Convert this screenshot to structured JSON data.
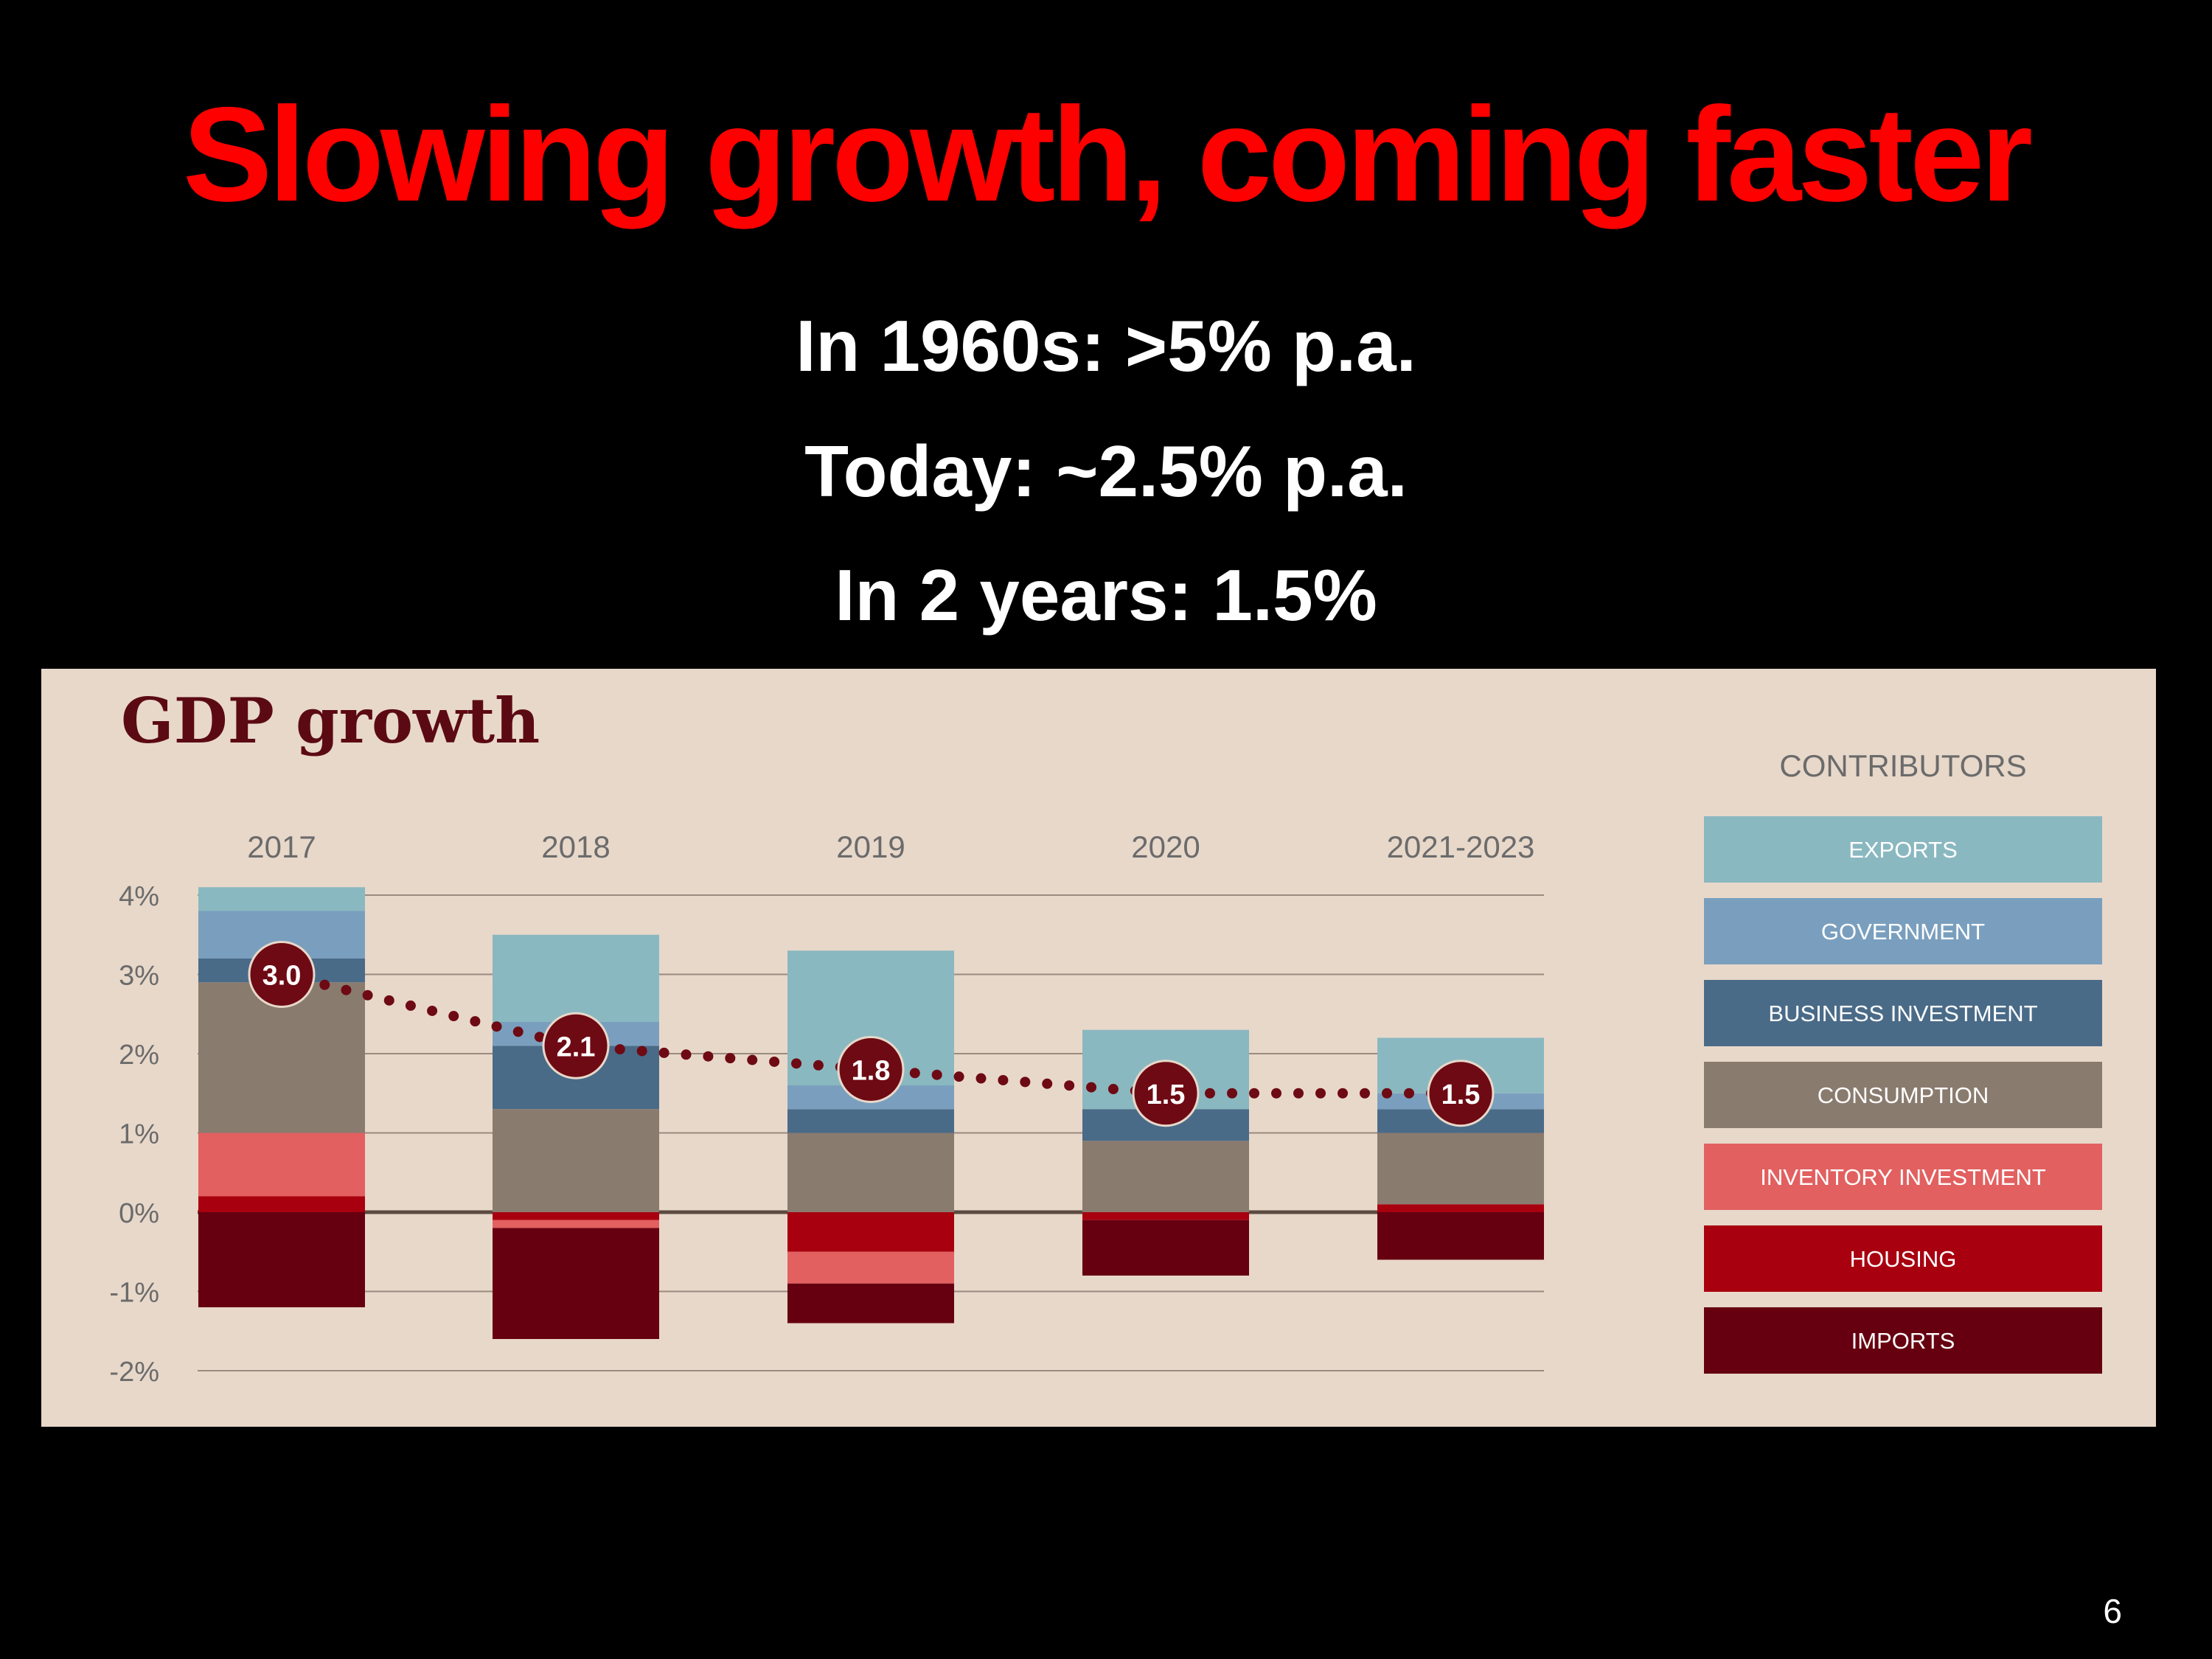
{
  "slide": {
    "title": "Slowing growth, coming faster",
    "bullets": [
      "In 1960s: >5% p.a.",
      "Today: ~2.5% p.a.",
      "In 2 years: 1.5%"
    ],
    "page_number": "6"
  },
  "colors": {
    "background": "#000000",
    "title": "#ff0000",
    "panel": "#e8d8ca",
    "exports": "#8ab8c0",
    "government": "#7a9fbe",
    "business_investment": "#4a6b88",
    "consumption": "#8a7b6f",
    "inventory_investment": "#e26060",
    "housing": "#a8000f",
    "imports": "#660010",
    "marker": "#6e0a14"
  },
  "chart_data": {
    "type": "bar",
    "title": "GDP growth",
    "legend_title": "CONTRIBUTORS",
    "legend_position": "right",
    "stacked": true,
    "grid": true,
    "categories": [
      "2017",
      "2018",
      "2019",
      "2020",
      "2021-2023"
    ],
    "ylim": [
      -2,
      4
    ],
    "yticks": [
      4,
      3,
      2,
      1,
      0,
      -1,
      -2
    ],
    "ytick_labels": [
      "4%",
      "3%",
      "2%",
      "1%",
      "0%",
      "-1%",
      "-2%"
    ],
    "series": [
      {
        "name": "EXPORTS",
        "color": "#8ab8c0",
        "values": [
          0.3,
          1.1,
          1.7,
          1.0,
          0.7
        ]
      },
      {
        "name": "GOVERNMENT",
        "color": "#7a9fbe",
        "values": [
          0.6,
          0.3,
          0.3,
          0.0,
          0.2
        ]
      },
      {
        "name": "BUSINESS INVESTMENT",
        "color": "#4a6b88",
        "values": [
          0.3,
          0.8,
          0.3,
          0.4,
          0.3
        ]
      },
      {
        "name": "CONSUMPTION",
        "color": "#8a7b6f",
        "values": [
          1.9,
          1.3,
          1.0,
          0.9,
          0.9
        ]
      },
      {
        "name": "INVENTORY INVESTMENT",
        "color": "#e26060",
        "values": [
          0.8,
          -0.1,
          -0.4,
          0.0,
          0.0
        ]
      },
      {
        "name": "HOUSING",
        "color": "#a8000f",
        "values": [
          0.2,
          -0.1,
          -0.5,
          -0.1,
          0.1
        ]
      },
      {
        "name": "IMPORTS",
        "color": "#660010",
        "values": [
          -1.2,
          -1.4,
          -0.5,
          -0.7,
          -0.6
        ]
      }
    ],
    "total_growth": {
      "values": [
        3.0,
        2.1,
        1.8,
        1.5,
        1.5
      ],
      "labels": [
        "3.0",
        "2.1",
        "1.8",
        "1.5",
        "1.5"
      ]
    }
  }
}
